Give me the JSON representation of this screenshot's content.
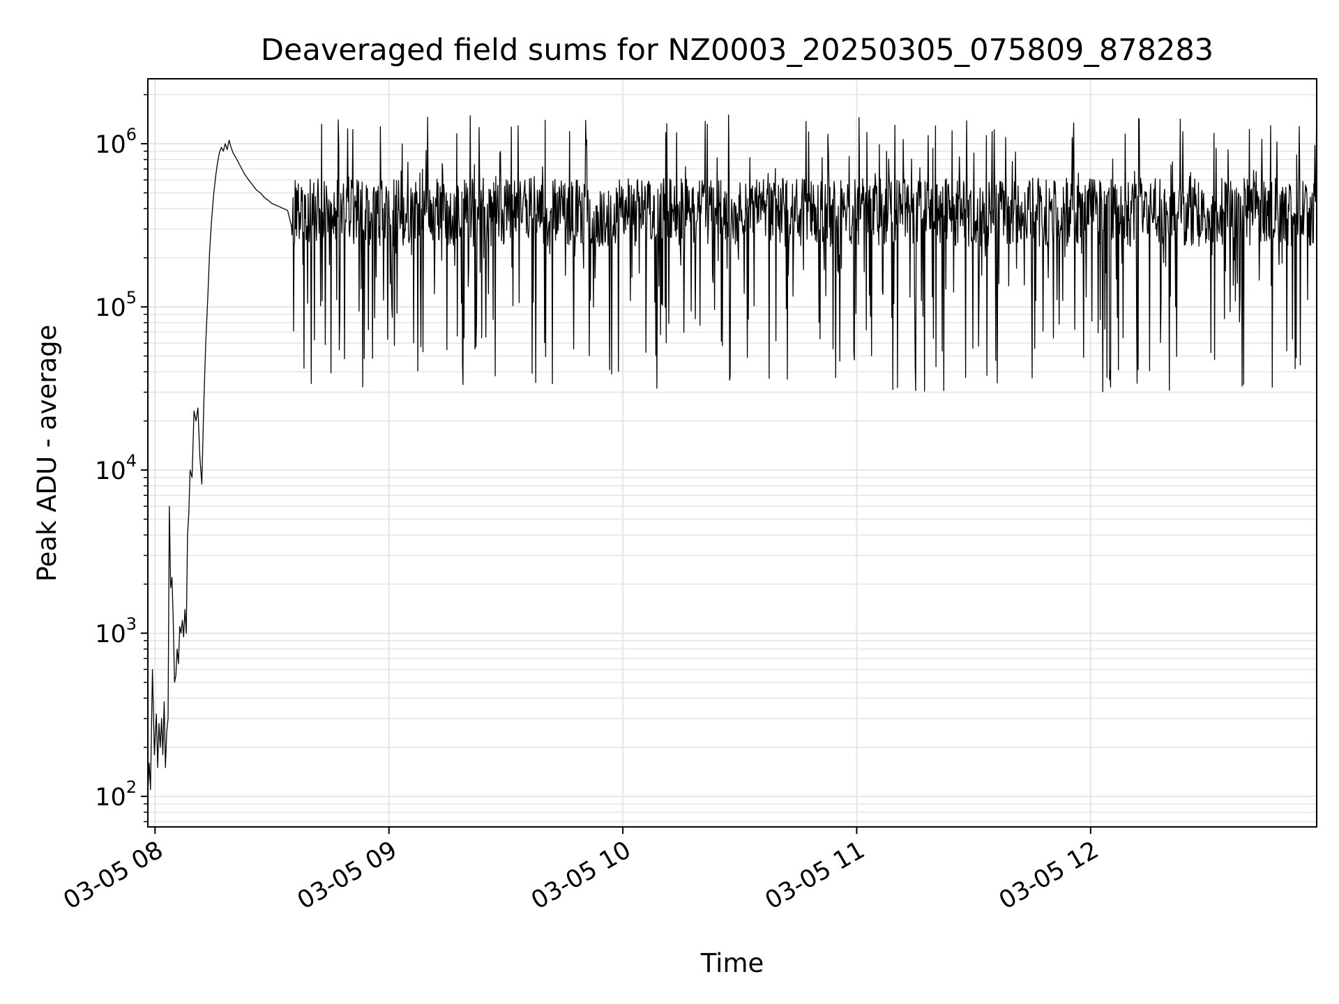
{
  "chart_data": {
    "type": "line",
    "title": "Deaveraged field sums for NZ0003_20250305_075809_878283",
    "xlabel": "Time",
    "ylabel": "Peak ADU - average",
    "xscale": "time",
    "yscale": "log",
    "xlim": [
      "2025-03-05 07:58:09",
      "2025-03-05 12:58:00"
    ],
    "ylim": [
      65,
      2500000
    ],
    "grid": true,
    "line_color": "#000000",
    "grid_color": "#e5e5e5",
    "x_ticks": [
      {
        "value": "2025-03-05 08:00",
        "label": "03-05 08"
      },
      {
        "value": "2025-03-05 09:00",
        "label": "03-05 09"
      },
      {
        "value": "2025-03-05 10:00",
        "label": "03-05 10"
      },
      {
        "value": "2025-03-05 11:00",
        "label": "03-05 11"
      },
      {
        "value": "2025-03-05 12:00",
        "label": "03-05 12"
      }
    ],
    "y_ticks": [
      {
        "value": 100,
        "base": "10",
        "exp": "2"
      },
      {
        "value": 1000,
        "base": "10",
        "exp": "3"
      },
      {
        "value": 10000,
        "base": "10",
        "exp": "4"
      },
      {
        "value": 100000,
        "base": "10",
        "exp": "5"
      },
      {
        "value": 1000000,
        "base": "10",
        "exp": "6"
      }
    ],
    "series": [
      {
        "x": [
          "07:58:10",
          "07:58:30",
          "07:58:50",
          "07:59:20",
          "07:59:50",
          "08:00:20",
          "08:00:40",
          "08:01:00",
          "08:01:20",
          "08:01:40",
          "08:02:00",
          "08:02:20",
          "08:02:40",
          "08:03:00",
          "08:03:20",
          "08:03:40",
          "08:04:00",
          "08:04:20",
          "08:04:40",
          "08:05:00",
          "08:05:20",
          "08:05:40",
          "08:06:00",
          "08:06:20",
          "08:06:40",
          "08:07:00",
          "08:07:20",
          "08:07:40",
          "08:08:00",
          "08:08:20",
          "08:08:40",
          "08:09:00",
          "08:09:30",
          "08:10:00",
          "08:10:30",
          "08:11:00",
          "08:11:30",
          "08:12:00",
          "08:12:30",
          "08:13:00",
          "08:13:30",
          "08:14:00",
          "08:14:30",
          "08:15:00",
          "08:15:30",
          "08:16:00",
          "08:16:30",
          "08:17:00",
          "08:17:30",
          "08:18:00",
          "08:18:30",
          "08:19:00",
          "08:19:30",
          "08:20:00",
          "08:21:00",
          "08:22:00",
          "08:23:00",
          "08:24:00",
          "08:25:00",
          "08:26:00",
          "08:27:00",
          "08:28:00",
          "08:29:00",
          "08:30:00",
          "08:31:00",
          "08:32:00",
          "08:33:00",
          "08:34:00",
          "08:35:00",
          "08:36:00",
          "08:37:00",
          "08:38:00",
          "08:40:00"
        ],
        "y": [
          110,
          160,
          110,
          600,
          180,
          320,
          150,
          280,
          200,
          300,
          180,
          380,
          150,
          250,
          300,
          6000,
          1900,
          2200,
          1200,
          500,
          550,
          800,
          650,
          1100,
          1000,
          1200,
          950,
          1400,
          1000,
          4000,
          5500,
          10000,
          9000,
          23000,
          20000,
          24000,
          12000,
          8200,
          25000,
          60000,
          110000,
          220000,
          340000,
          480000,
          620000,
          760000,
          880000,
          950000,
          900000,
          1000000,
          920000,
          1050000,
          950000,
          880000,
          800000,
          720000,
          650000,
          600000,
          560000,
          520000,
          500000,
          470000,
          450000,
          430000,
          420000,
          410000,
          400000,
          390000,
          380000,
          370000,
          360000,
          350000,
          340000
        ],
        "noise_from": "08:35:00",
        "noise_to": "12:58:00",
        "noise_level": 380000,
        "noise_min": 30000,
        "noise_max": 1500000,
        "noise_step_seconds": 8
      }
    ]
  }
}
